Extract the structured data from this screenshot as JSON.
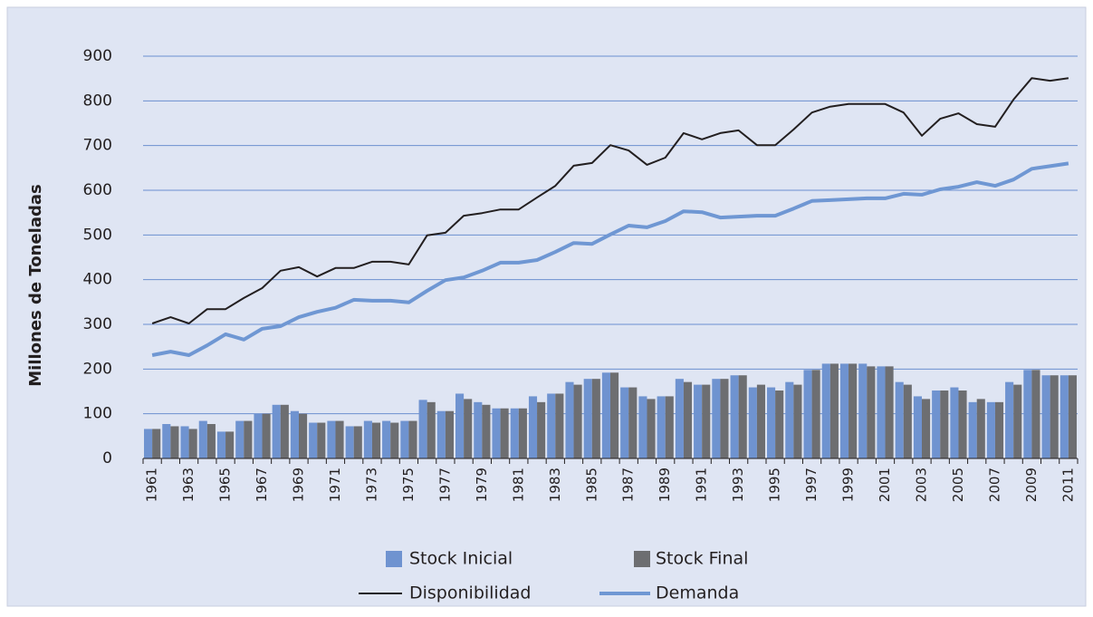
{
  "chart_data": {
    "type": "bar",
    "y_label": "Millones de Toneladas",
    "categories": [
      "1961",
      null,
      "1963",
      null,
      "1965",
      null,
      "1967",
      null,
      "1969",
      null,
      "1971",
      null,
      "1973",
      null,
      "1975",
      null,
      "1977",
      null,
      "1979",
      null,
      "1981",
      null,
      "1983",
      null,
      "1985",
      null,
      "1987",
      null,
      "1989",
      null,
      "1991",
      null,
      "1993",
      null,
      "1995",
      null,
      "1997",
      null,
      "1999",
      null,
      "2001",
      null,
      "2003",
      null,
      "2005",
      null,
      "2007",
      null,
      "2009",
      null,
      "2011"
    ],
    "series": [
      {
        "name": "Stock Inicial",
        "type": "bar",
        "color": "#6f93d0",
        "values": [
          66,
          77,
          72,
          84,
          60,
          84,
          100,
          120,
          106,
          80,
          84,
          72,
          84,
          84,
          84,
          131,
          106,
          145,
          126,
          112,
          112,
          139,
          145,
          171,
          178,
          192,
          159,
          139,
          139,
          178,
          165,
          178,
          186,
          159,
          159,
          171,
          198,
          212,
          212,
          212,
          206,
          171,
          139,
          152,
          159,
          126,
          126,
          171,
          198,
          186,
          186
        ]
      },
      {
        "name": "Stock Final",
        "type": "bar",
        "color": "#6d6e71",
        "values": [
          66,
          72,
          66,
          77,
          60,
          84,
          100,
          120,
          100,
          80,
          84,
          72,
          80,
          80,
          84,
          126,
          106,
          133,
          120,
          112,
          112,
          126,
          145,
          165,
          178,
          192,
          159,
          133,
          139,
          171,
          165,
          178,
          186,
          165,
          152,
          165,
          198,
          212,
          212,
          206,
          206,
          165,
          133,
          152,
          152,
          133,
          126,
          165,
          198,
          186,
          186
        ]
      },
      {
        "name": "Disponibilidad",
        "type": "line",
        "color": "#231f20",
        "values": [
          302,
          316,
          302,
          334,
          334,
          359,
          381,
          420,
          428,
          407,
          426,
          426,
          440,
          440,
          434,
          499,
          505,
          543,
          549,
          557,
          557,
          584,
          610,
          655,
          661,
          701,
          689,
          657,
          673,
          728,
          714,
          728,
          734,
          701,
          701,
          736,
          774,
          787,
          793,
          793,
          793,
          774,
          722,
          760,
          772,
          748,
          742,
          803,
          851,
          845,
          851
        ]
      },
      {
        "name": "Demanda",
        "type": "line",
        "color": "#6f97d3",
        "values": [
          231,
          239,
          231,
          253,
          278,
          266,
          290,
          296,
          316,
          328,
          337,
          355,
          353,
          353,
          349,
          375,
          399,
          405,
          420,
          438,
          438,
          444,
          462,
          482,
          480,
          501,
          521,
          517,
          531,
          553,
          551,
          539,
          541,
          543,
          543,
          559,
          576,
          578,
          580,
          582,
          582,
          592,
          590,
          602,
          608,
          618,
          610,
          624,
          648,
          654,
          660
        ]
      }
    ],
    "ylim": [
      0,
      900
    ],
    "yticks": [
      0,
      100,
      200,
      300,
      400,
      500,
      600,
      700,
      800,
      900
    ],
    "grid": true,
    "legend": "bottom"
  }
}
